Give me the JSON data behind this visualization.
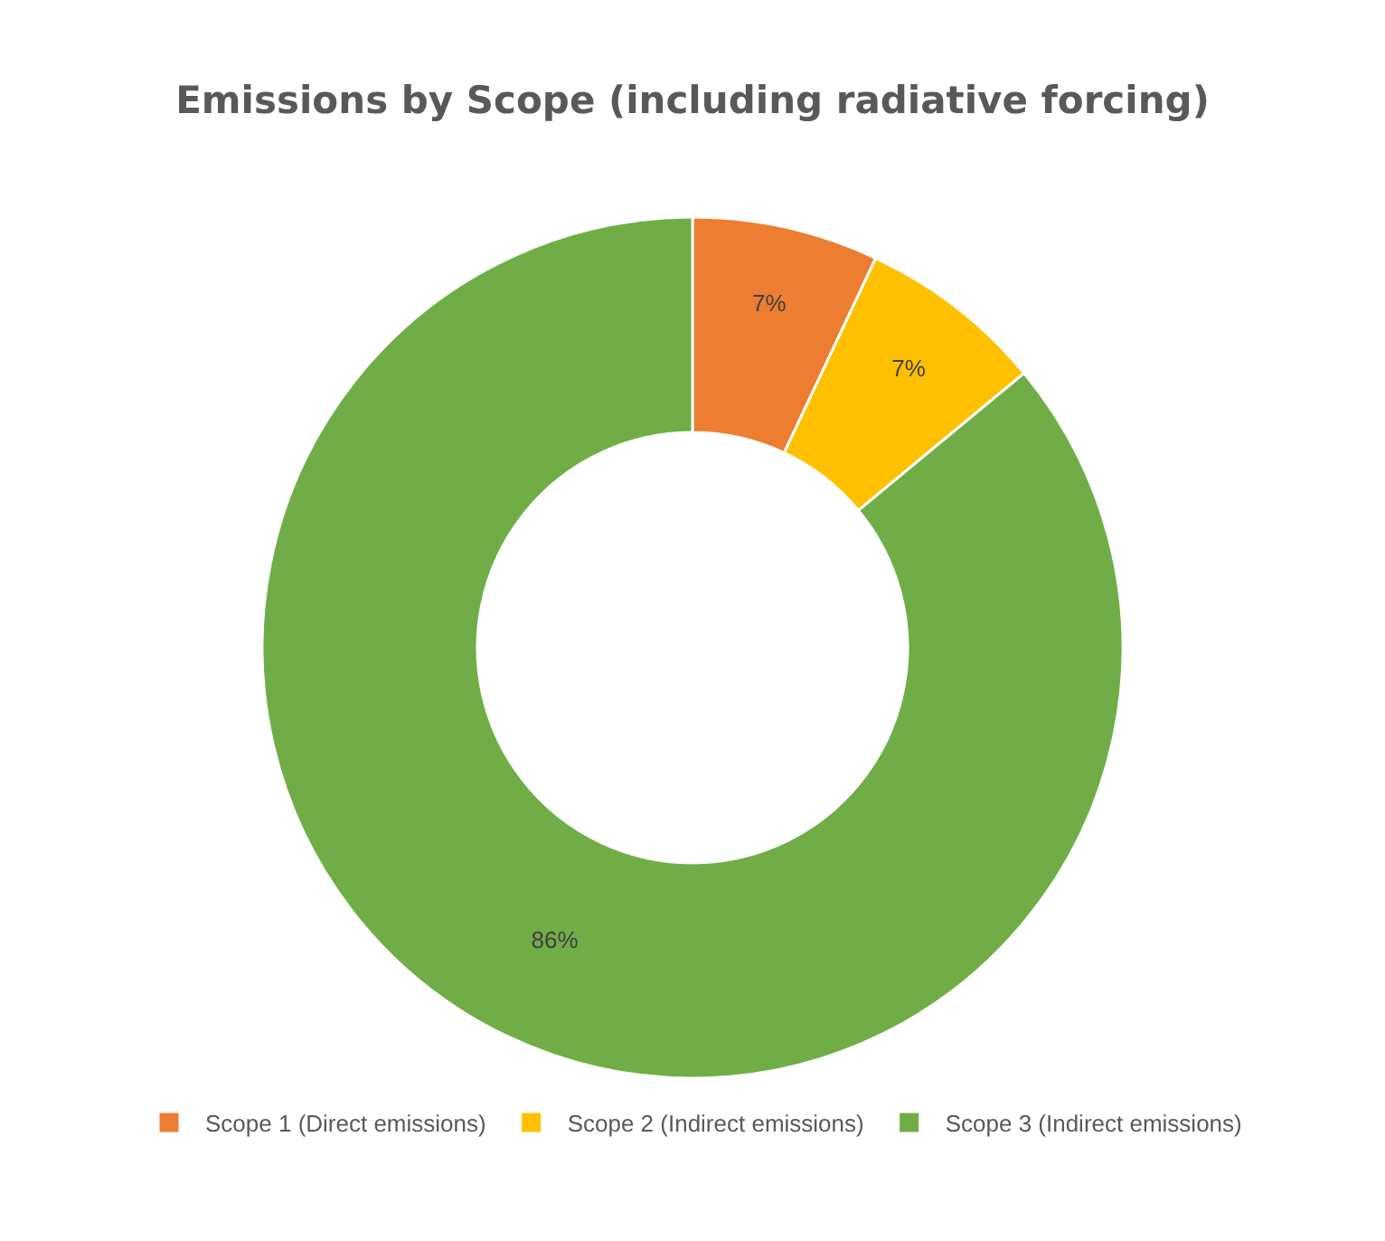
{
  "chart_data": {
    "type": "donut",
    "title": "Emissions by Scope (including radiative forcing)",
    "categories": [
      "Scope 1 (Direct emissions)",
      "Scope 2 (Indirect emissions)",
      "Scope 3 (Indirect emissions)"
    ],
    "values": [
      7,
      7,
      86
    ],
    "colors": [
      "#ed7d31",
      "#ffc000",
      "#70ad47"
    ],
    "value_labels": [
      "7%",
      "7%",
      "86%"
    ],
    "legend": "bottom"
  }
}
